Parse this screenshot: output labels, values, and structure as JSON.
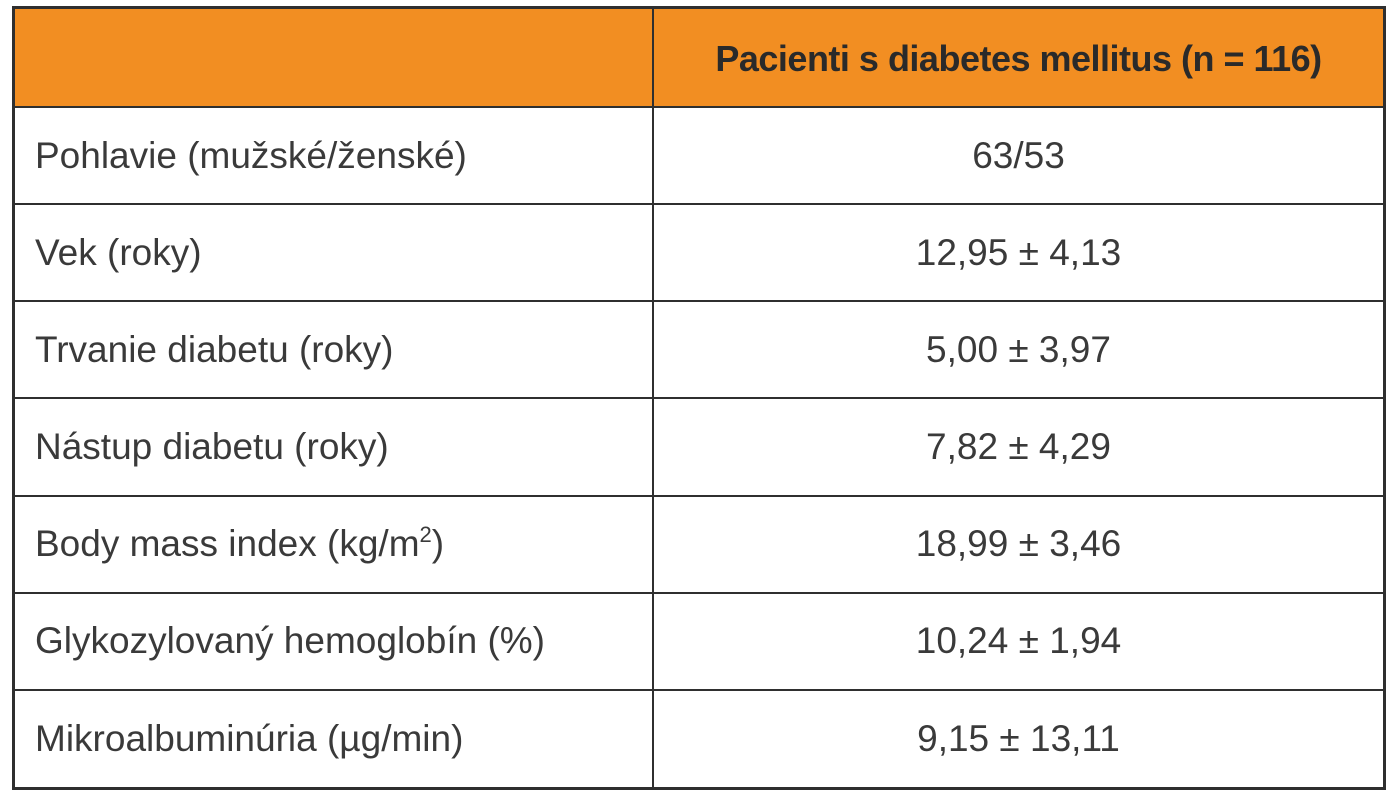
{
  "table": {
    "header": {
      "corner": "",
      "column_label": "Pacienti s diabetes mellitus (n = 116)"
    },
    "rows": [
      {
        "label": "Pohlavie (mužské/ženské)",
        "value": "63/53"
      },
      {
        "label": "Vek (roky)",
        "value": "12,95 ± 4,13"
      },
      {
        "label": "Trvanie diabetu (roky)",
        "value": "5,00 ± 3,97"
      },
      {
        "label": "Nástup diabetu (roky)",
        "value": "7,82 ± 4,29"
      },
      {
        "label_main": "Body mass index (kg/m",
        "label_sup": "2",
        "label_end": ")",
        "value": "18,99 ± 3,46"
      },
      {
        "label": "Glykozylovaný hemoglobín (%)",
        "value": "10,24 ± 1,94"
      },
      {
        "label": "Mikroalbuminúria (µg/min)",
        "value": "9,15 ± 13,11"
      }
    ],
    "colors": {
      "header_background": "#f28e22",
      "border": "#2f2f2f",
      "text": "#3a3a3a"
    }
  }
}
